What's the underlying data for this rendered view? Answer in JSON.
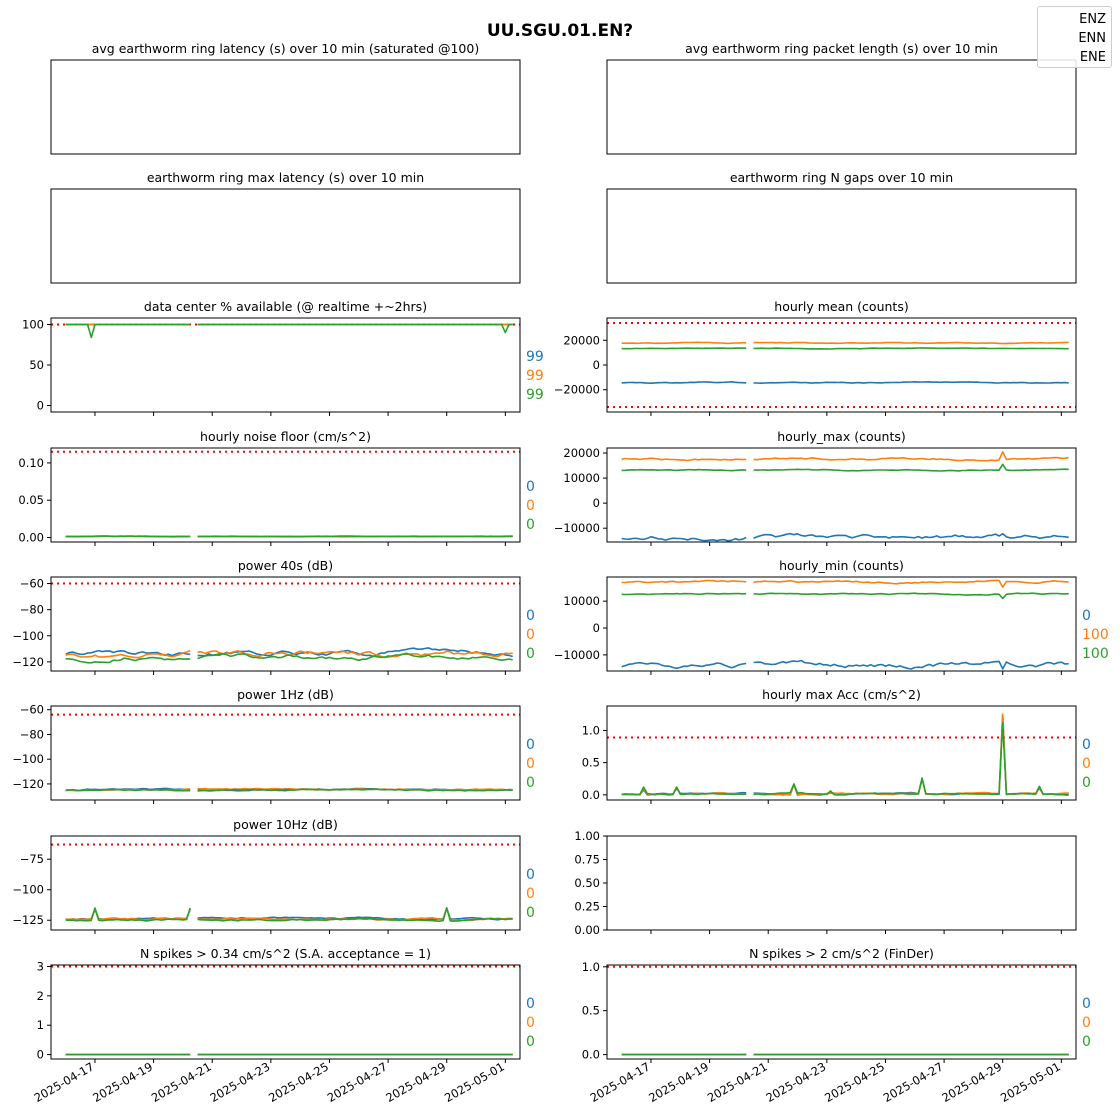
{
  "figure_title": "UU.SGU.01.EN?",
  "colors": {
    "ENZ": "#1f77b4",
    "ENN": "#ff7f0e",
    "ENE": "#2ca02c",
    "threshold": "#ff0000"
  },
  "legend": [
    {
      "label": "ENZ",
      "color": "#1f77b4",
      "visible": false
    },
    {
      "label": "ENN",
      "color": "#ff7f0e",
      "visible": false
    },
    {
      "label": "ENE",
      "color": "#2ca02c",
      "visible": false
    }
  ],
  "x_axis": {
    "start": "2025-04-15T12:00",
    "end": "2025-05-01T12:00",
    "tick_dates": [
      "2025-04-17",
      "2025-04-19",
      "2025-04-21",
      "2025-04-23",
      "2025-04-25",
      "2025-04-27",
      "2025-04-29",
      "2025-05-01"
    ],
    "gap": [
      "2025-04-20T08:00",
      "2025-04-20T12:00"
    ]
  },
  "chart_data": [
    {
      "id": "avg-latency",
      "type": "line",
      "title": "avg earthworm ring latency (s)   over 10 min (saturated @100)",
      "empty": true,
      "series": [],
      "side_labels": []
    },
    {
      "id": "avg-packet-length",
      "type": "line",
      "title": "avg earthworm ring packet length (s)   over 10 min",
      "empty": true,
      "series": [],
      "side_labels": []
    },
    {
      "id": "max-latency",
      "type": "line",
      "title": "earthworm ring max latency (s)   over 10 min",
      "empty": true,
      "series": [],
      "side_labels": []
    },
    {
      "id": "n-gaps",
      "type": "line",
      "title": "earthworm ring N gaps   over 10 min",
      "empty": true,
      "series": [],
      "side_labels": []
    },
    {
      "id": "availability",
      "type": "line",
      "title": "data center % available (@ realtime +~2hrs)",
      "ylim": [
        -8,
        108
      ],
      "yticks": [
        "0",
        "50",
        "100"
      ],
      "thresholds": [
        100
      ],
      "series": [
        {
          "channel": "ENZ",
          "base": 100,
          "noise": 0,
          "spikes": []
        },
        {
          "channel": "ENN",
          "base": 100,
          "noise": 0,
          "spikes": []
        },
        {
          "channel": "ENE",
          "base": 100,
          "noise": 0,
          "spikes": [
            [
              "2025-04-16T22:00",
              84
            ],
            [
              "2025-05-01T00:00",
              90
            ]
          ]
        }
      ],
      "side_labels": [
        "99",
        "99",
        "99"
      ]
    },
    {
      "id": "hourly-mean",
      "type": "line",
      "title": "hourly mean (counts)",
      "ylim": [
        -38000,
        38000
      ],
      "yticks": [
        "−20000",
        "0",
        "20000"
      ],
      "thresholds": [
        34000,
        -34000
      ],
      "series": [
        {
          "channel": "ENZ",
          "base": -14200,
          "noise": 300,
          "spikes": []
        },
        {
          "channel": "ENN",
          "base": 17800,
          "noise": 200,
          "spikes": []
        },
        {
          "channel": "ENE",
          "base": 13400,
          "noise": 150,
          "spikes": []
        }
      ],
      "side_labels": []
    },
    {
      "id": "noise-floor",
      "type": "line",
      "title": "hourly noise floor (cm/s^2)",
      "ylim": [
        -0.006,
        0.12
      ],
      "yticks": [
        "0.00",
        "0.05",
        "0.10"
      ],
      "thresholds": [
        0.115
      ],
      "series": [
        {
          "channel": "ENZ",
          "base": 0.0015,
          "noise": 0.0002,
          "spikes": []
        },
        {
          "channel": "ENN",
          "base": 0.0015,
          "noise": 0.0002,
          "spikes": []
        },
        {
          "channel": "ENE",
          "base": 0.0015,
          "noise": 0.0002,
          "spikes": []
        }
      ],
      "side_labels": [
        "0",
        "0",
        "0"
      ]
    },
    {
      "id": "hourly-max",
      "type": "line",
      "title": "hourly_max (counts)",
      "ylim": [
        -15500,
        22000
      ],
      "yticks": [
        "−10000",
        "0",
        "10000",
        "20000"
      ],
      "thresholds": [],
      "series": [
        {
          "channel": "ENZ",
          "base": -13500,
          "noise": 600,
          "spikes": [
            [
              "2025-04-29T00:00",
              -12200
            ]
          ]
        },
        {
          "channel": "ENN",
          "base": 17800,
          "noise": 300,
          "spikes": [
            [
              "2025-04-29T00:00",
              20500
            ]
          ]
        },
        {
          "channel": "ENE",
          "base": 13200,
          "noise": 150,
          "spikes": [
            [
              "2025-04-29T00:00",
              15500
            ]
          ]
        }
      ],
      "side_labels": []
    },
    {
      "id": "power-40s",
      "type": "line",
      "title": "power 40s (dB)",
      "ylim": [
        -127,
        -55
      ],
      "yticks": [
        "−120",
        "−100",
        "−80",
        "−60"
      ],
      "thresholds": [
        -60
      ],
      "series": [
        {
          "channel": "ENZ",
          "base": -113,
          "noise": 1.2,
          "spikes": []
        },
        {
          "channel": "ENN",
          "base": -113.5,
          "noise": 1.4,
          "spikes": []
        },
        {
          "channel": "ENE",
          "base": -116.5,
          "noise": 1.2,
          "spikes": []
        }
      ],
      "side_labels": [
        "0",
        "0",
        "0"
      ]
    },
    {
      "id": "hourly-min",
      "type": "line",
      "title": "hourly_min (counts)",
      "ylim": [
        -16000,
        19000
      ],
      "yticks": [
        "−10000",
        "0",
        "10000"
      ],
      "thresholds": [],
      "series": [
        {
          "channel": "ENZ",
          "base": -13800,
          "noise": 600,
          "spikes": [
            [
              "2025-04-29T00:00",
              -15200
            ]
          ]
        },
        {
          "channel": "ENN",
          "base": 17200,
          "noise": 250,
          "spikes": [
            [
              "2025-04-29T00:00",
              15200
            ]
          ]
        },
        {
          "channel": "ENE",
          "base": 12700,
          "noise": 150,
          "spikes": [
            [
              "2025-04-29T00:00",
              11000
            ]
          ]
        }
      ],
      "side_labels": [
        "0",
        "100",
        "100"
      ]
    },
    {
      "id": "power-1hz",
      "type": "line",
      "title": "power 1Hz (dB)",
      "ylim": [
        -133,
        -57
      ],
      "yticks": [
        "−120",
        "−100",
        "−80",
        "−60"
      ],
      "thresholds": [
        -64
      ],
      "series": [
        {
          "channel": "ENZ",
          "base": -124.5,
          "noise": 0.4,
          "spikes": []
        },
        {
          "channel": "ENN",
          "base": -124.5,
          "noise": 0.4,
          "spikes": []
        },
        {
          "channel": "ENE",
          "base": -125,
          "noise": 0.4,
          "spikes": []
        }
      ],
      "side_labels": [
        "0",
        "0",
        "0"
      ]
    },
    {
      "id": "max-acc",
      "type": "line",
      "title": "hourly max Acc (cm/s^2)",
      "ylim": [
        -0.08,
        1.38
      ],
      "yticks": [
        "0.0",
        "0.5",
        "1.0"
      ],
      "thresholds": [
        0.89
      ],
      "series": [
        {
          "channel": "ENZ",
          "base": 0.015,
          "noise": 0.008,
          "spikes": [
            [
              "2025-04-16T18:00",
              0.08
            ],
            [
              "2025-04-17T20:00",
              0.1
            ],
            [
              "2025-04-21T20:00",
              0.16
            ],
            [
              "2025-04-23T02:00",
              0.05
            ],
            [
              "2025-04-26T06:00",
              0.26
            ],
            [
              "2025-04-29T00:00",
              1.25
            ],
            [
              "2025-04-30T06:00",
              0.13
            ]
          ]
        },
        {
          "channel": "ENN",
          "base": 0.015,
          "noise": 0.008,
          "spikes": [
            [
              "2025-04-16T18:00",
              0.1
            ],
            [
              "2025-04-17T20:00",
              0.12
            ],
            [
              "2025-04-21T20:00",
              0.16
            ],
            [
              "2025-04-26T06:00",
              0.24
            ],
            [
              "2025-04-29T00:00",
              1.25
            ],
            [
              "2025-04-30T06:00",
              0.1
            ]
          ]
        },
        {
          "channel": "ENE",
          "base": 0.015,
          "noise": 0.008,
          "spikes": [
            [
              "2025-04-16T18:00",
              0.12
            ],
            [
              "2025-04-17T20:00",
              0.12
            ],
            [
              "2025-04-21T20:00",
              0.17
            ],
            [
              "2025-04-23T02:00",
              0.06
            ],
            [
              "2025-04-26T06:00",
              0.25
            ],
            [
              "2025-04-29T00:00",
              1.12
            ],
            [
              "2025-04-30T06:00",
              0.12
            ]
          ]
        }
      ],
      "side_labels": [
        "0",
        "0",
        "0"
      ]
    },
    {
      "id": "power-10hz",
      "type": "line",
      "title": "power 10Hz (dB)",
      "ylim": [
        -133,
        -56
      ],
      "yticks": [
        "−125",
        "−100",
        "−75"
      ],
      "thresholds": [
        -63
      ],
      "series": [
        {
          "channel": "ENZ",
          "base": -123.5,
          "noise": 0.5,
          "spikes": [
            [
              "2025-04-17T00:00",
              -116
            ],
            [
              "2025-04-20T06:00",
              -116
            ],
            [
              "2025-04-29T00:00",
              -115
            ]
          ]
        },
        {
          "channel": "ENN",
          "base": -124,
          "noise": 0.5,
          "spikes": [
            [
              "2025-04-17T00:00",
              -116
            ],
            [
              "2025-04-20T06:00",
              -116
            ],
            [
              "2025-04-29T00:00",
              -115
            ]
          ]
        },
        {
          "channel": "ENE",
          "base": -124.5,
          "noise": 0.5,
          "spikes": [
            [
              "2025-04-17T00:00",
              -115
            ],
            [
              "2025-04-20T06:00",
              -115
            ],
            [
              "2025-04-29T00:00",
              -115
            ]
          ]
        }
      ],
      "side_labels": [
        "0",
        "0",
        "0"
      ]
    },
    {
      "id": "unused-panel",
      "type": "line",
      "title": "",
      "empty": true,
      "xlim": "shared",
      "ylim": [
        0,
        1
      ],
      "yticks": [
        "0.00",
        "0.25",
        "0.50",
        "0.75",
        "1.00"
      ],
      "series": [],
      "side_labels": []
    },
    {
      "id": "spikes-sa",
      "type": "line",
      "title": "N spikes > 0.34 cm/s^2 (S.A. acceptance = 1)",
      "ylim": [
        -0.15,
        3.05
      ],
      "yticks": [
        "0",
        "1",
        "2",
        "3"
      ],
      "thresholds": [
        3
      ],
      "series": [
        {
          "channel": "ENZ",
          "base": 0,
          "noise": 0,
          "spikes": []
        },
        {
          "channel": "ENN",
          "base": 0,
          "noise": 0,
          "spikes": []
        },
        {
          "channel": "ENE",
          "base": 0,
          "noise": 0,
          "spikes": []
        }
      ],
      "side_labels": [
        "0",
        "0",
        "0"
      ]
    },
    {
      "id": "spikes-finder",
      "type": "line",
      "title": "N spikes > 2 cm/s^2 (FinDer)",
      "ylim": [
        -0.05,
        1.02
      ],
      "yticks": [
        "0.0",
        "0.5",
        "1.0"
      ],
      "thresholds": [
        1
      ],
      "series": [
        {
          "channel": "ENZ",
          "base": 0,
          "noise": 0,
          "spikes": []
        },
        {
          "channel": "ENN",
          "base": 0,
          "noise": 0,
          "spikes": []
        },
        {
          "channel": "ENE",
          "base": 0,
          "noise": 0,
          "spikes": []
        }
      ],
      "side_labels": [
        "0",
        "0",
        "0"
      ]
    }
  ]
}
